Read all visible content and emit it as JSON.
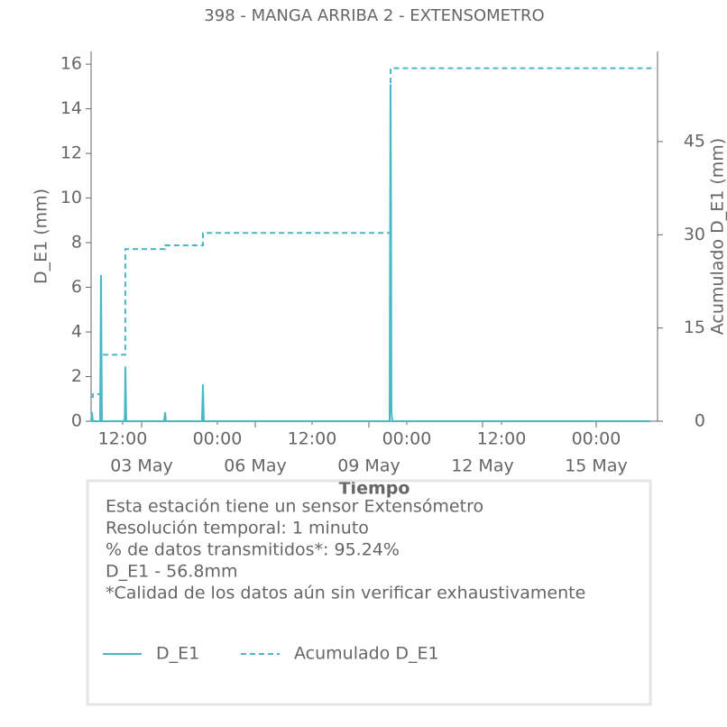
{
  "chart_data": {
    "type": "line",
    "title": "398 - MANGA ARRIBA 2 - EXTENSOMETRO",
    "xlabel": "Tiempo",
    "ylabel": "D_E1 (mm)",
    "y2label": "Acumulado D_E1 (mm)",
    "xlim": [
      1.667,
      16.62
    ],
    "xticks": [
      {
        "value": 2.5,
        "label": "12:00"
      },
      {
        "value": 5,
        "label": "00:00"
      },
      {
        "value": 7.5,
        "label": "12:00"
      },
      {
        "value": 10,
        "label": "00:00"
      },
      {
        "value": 12.5,
        "label": "12:00"
      },
      {
        "value": 15,
        "label": "00:00"
      }
    ],
    "xticks_dates": [
      {
        "value": 3,
        "label": "03 May"
      },
      {
        "value": 6,
        "label": "06 May"
      },
      {
        "value": 9,
        "label": "09 May"
      },
      {
        "value": 12,
        "label": "12 May"
      },
      {
        "value": 15,
        "label": "15 May"
      }
    ],
    "ylim": [
      0,
      16.57
    ],
    "yticks": [
      0,
      2,
      4,
      6,
      8,
      10,
      12,
      14,
      16
    ],
    "y2lim": [
      0,
      59.5
    ],
    "y2ticks": [
      0,
      15,
      30,
      45
    ],
    "series": [
      {
        "name": "D_E1",
        "color": "#4ab8c4",
        "dashed": false,
        "x": [
          1.667,
          1.69,
          1.714,
          1.905,
          1.929,
          1.952,
          2.548,
          2.56,
          2.571,
          2.595,
          3.595,
          3.619,
          3.643,
          4.595,
          4.619,
          4.643,
          9.548,
          9.571,
          9.583,
          9.595,
          9.619,
          16.43
        ],
        "values": [
          0,
          0.4,
          0,
          0,
          6.55,
          0,
          0,
          0.4,
          2.45,
          0,
          0,
          0.4,
          0,
          0,
          1.65,
          0,
          0,
          15.1,
          9.8,
          0.4,
          0,
          0
        ]
      },
      {
        "name": "Acumulado D_E1",
        "color": "#4ab8c4",
        "dashed": true,
        "axis": "y2",
        "x": [
          1.667,
          1.714,
          1.714,
          1.929,
          1.929,
          2.571,
          2.571,
          3.619,
          3.619,
          4.619,
          4.619,
          9.571,
          9.571,
          16.57
        ],
        "values": [
          3.9,
          3.9,
          4.35,
          4.35,
          10.7,
          10.7,
          27.7,
          27.7,
          28.3,
          28.3,
          30.3,
          30.3,
          56.8,
          56.8
        ]
      }
    ],
    "info": [
      "Esta estación tiene un sensor Extensómetro",
      "Resolución temporal: 1 minuto",
      "% de datos transmitidos*: 95.24%",
      "D_E1 - 56.8mm",
      "*Calidad de los datos aún sin verificar exhaustivamente"
    ]
  }
}
